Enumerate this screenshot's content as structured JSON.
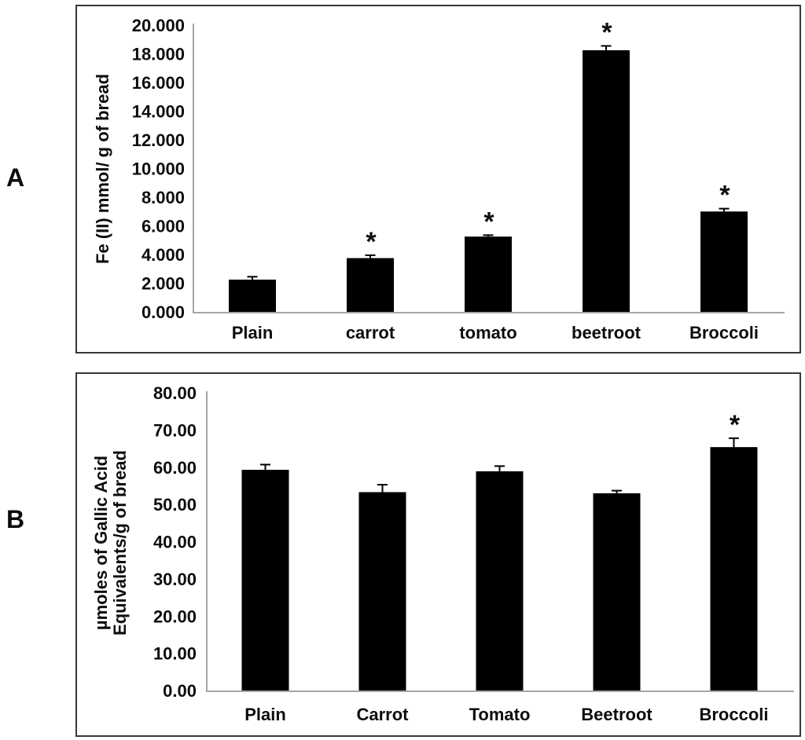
{
  "figure": {
    "background": "#ffffff",
    "panels": [
      {
        "label": "A"
      },
      {
        "label": "B"
      }
    ]
  },
  "chart_data": [
    {
      "id": "chart-a",
      "panel_label": "A",
      "type": "bar",
      "title": "",
      "ylabel_lines": [
        "Fe (II) mmol/ g of bread"
      ],
      "categories": [
        "Plain",
        "carrot",
        "tomato",
        "beetroot",
        "Broccoli"
      ],
      "values": [
        2.25,
        3.75,
        5.25,
        18.25,
        7.0
      ],
      "errors": [
        0.2,
        0.2,
        0.1,
        0.3,
        0.2
      ],
      "significant": [
        false,
        true,
        true,
        true,
        true
      ],
      "significance_marker": "*",
      "ylim": [
        0,
        20
      ],
      "ytick_values": [
        0,
        2,
        4,
        6,
        8,
        10,
        12,
        14,
        16,
        18,
        20
      ],
      "ytick_labels": [
        "0.000",
        "2.000",
        "4.000",
        "6.000",
        "8.000",
        "10.000",
        "12.000",
        "14.000",
        "16.000",
        "18.000",
        "20.000"
      ],
      "bar_color": "#000000",
      "axis_color": "#a6a6a6",
      "text_color": "#0d0d0d",
      "error_bar_color": "#000000",
      "grid": false,
      "legend": "none"
    },
    {
      "id": "chart-b",
      "panel_label": "B",
      "type": "bar",
      "title": "",
      "ylabel_lines": [
        "µmoles of Gallic Acid",
        "Equivalents/g of bread"
      ],
      "categories": [
        "Plain",
        "Carrot",
        "Tomato",
        "Beetroot",
        "Broccoli"
      ],
      "values": [
        59.3,
        53.3,
        58.9,
        53.0,
        65.4
      ],
      "errors": [
        1.4,
        2.0,
        1.4,
        0.7,
        2.4
      ],
      "significant": [
        false,
        false,
        false,
        false,
        true
      ],
      "significance_marker": "*",
      "ylim": [
        0,
        80
      ],
      "ytick_values": [
        0,
        10,
        20,
        30,
        40,
        50,
        60,
        70,
        80
      ],
      "ytick_labels": [
        "0.00",
        "10.00",
        "20.00",
        "30.00",
        "40.00",
        "50.00",
        "60.00",
        "70.00",
        "80.00"
      ],
      "bar_color": "#000000",
      "axis_color": "#a6a6a6",
      "text_color": "#0d0d0d",
      "error_bar_color": "#000000",
      "grid": false,
      "legend": "none"
    }
  ]
}
